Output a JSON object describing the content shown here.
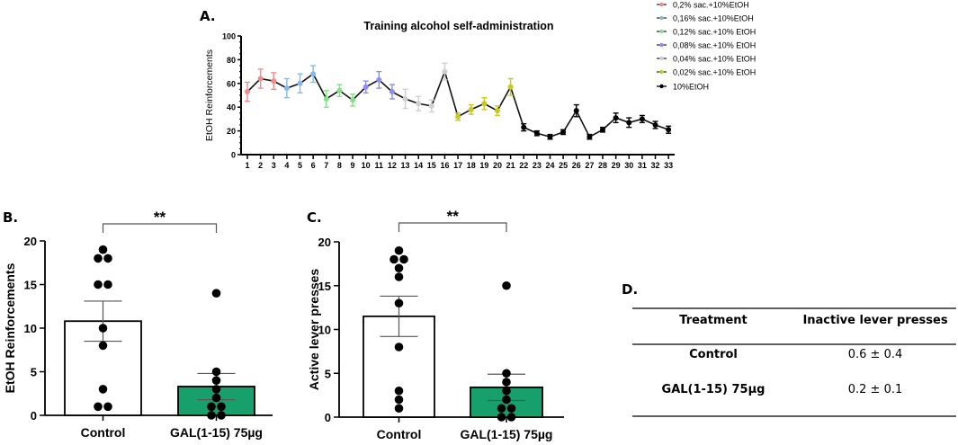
{
  "chart_data": [
    {
      "panel": "A.",
      "type": "line",
      "title": "Training alcohol self-administration",
      "xlabel": "",
      "ylabel": "EtOH Reinforcements",
      "ylim": [
        0,
        100
      ],
      "yticks": [
        0,
        20,
        40,
        60,
        80,
        100
      ],
      "x": [
        1,
        2,
        3,
        4,
        5,
        6,
        7,
        8,
        9,
        10,
        11,
        12,
        13,
        14,
        15,
        16,
        17,
        18,
        19,
        20,
        21,
        22,
        23,
        24,
        25,
        26,
        27,
        28,
        29,
        30,
        31,
        32,
        33
      ],
      "y": [
        53,
        64,
        62,
        56,
        60,
        68,
        47,
        54,
        46,
        57,
        63,
        53,
        47,
        43,
        41,
        70,
        32,
        38,
        43,
        37,
        57,
        23,
        18,
        15,
        19,
        37,
        15,
        21,
        31,
        27,
        30,
        25,
        21
      ],
      "err": [
        8,
        8,
        7,
        8,
        8,
        7,
        7,
        5,
        5,
        5,
        7,
        6,
        8,
        6,
        5,
        7,
        3,
        4,
        5,
        4,
        7,
        3,
        2,
        2,
        2,
        5,
        2,
        2,
        4,
        4,
        3,
        3,
        3
      ],
      "series": [
        {
          "name": "0,2% sac.+10%EtOH",
          "sessions": [
            1,
            2,
            3
          ],
          "color": "#f28a8a"
        },
        {
          "name": "0,16% sac.+10%EtOH",
          "sessions": [
            4,
            5,
            6
          ],
          "color": "#86b8ea"
        },
        {
          "name": "0,12% sac.+10% EtOH",
          "sessions": [
            7,
            8,
            9
          ],
          "color": "#84e084"
        },
        {
          "name": "0,08% sac.+10% EtOH",
          "sessions": [
            10,
            11,
            12
          ],
          "color": "#8c8cf2"
        },
        {
          "name": "0,04% sac.+10% EtOH",
          "sessions": [
            13,
            14,
            15,
            16
          ],
          "color": "#cfcfcf"
        },
        {
          "name": "0,02% sac.+10% EtOH",
          "sessions": [
            17,
            18,
            19,
            20,
            21
          ],
          "color": "#c9c91c"
        },
        {
          "name": "10%EtOH",
          "sessions": [
            22,
            23,
            24,
            25,
            26,
            27,
            28,
            29,
            30,
            31,
            32,
            33
          ],
          "color": "#000000"
        }
      ],
      "legend_position": "top-right"
    },
    {
      "panel": "B.",
      "type": "bar",
      "ylabel": "EtOH Reinforcements",
      "ylim": [
        0,
        20
      ],
      "yticks": [
        0,
        5,
        10,
        15,
        20
      ],
      "categories": [
        "Control",
        "GAL(1-15) 75µg"
      ],
      "values": [
        10.8,
        3.3
      ],
      "sem": [
        2.3,
        1.5
      ],
      "points": [
        [
          19,
          18,
          18,
          15,
          15,
          10,
          8,
          3,
          1,
          1
        ],
        [
          14,
          5,
          4,
          3,
          2,
          1,
          1,
          0,
          0
        ]
      ],
      "colors": [
        "#ffffff",
        "#17a06b"
      ],
      "significance": "**"
    },
    {
      "panel": "C.",
      "type": "bar",
      "ylabel": "Active lever presses",
      "ylim": [
        0,
        20
      ],
      "yticks": [
        0,
        5,
        10,
        15,
        20
      ],
      "categories": [
        "Control",
        "GAL(1-15) 75µg"
      ],
      "values": [
        11.5,
        3.4
      ],
      "sem": [
        2.3,
        1.5
      ],
      "points": [
        [
          19,
          18,
          18,
          17,
          16,
          13,
          8,
          3,
          2,
          1
        ],
        [
          15,
          5,
          4,
          3,
          2,
          1,
          1,
          0,
          0
        ]
      ],
      "colors": [
        "#ffffff",
        "#17a06b"
      ],
      "significance": "**"
    },
    {
      "panel": "D.",
      "type": "table",
      "columns": [
        "Treatment",
        "Inactive lever presses"
      ],
      "rows": [
        [
          "Control",
          "0.6 ± 0.4"
        ],
        [
          "GAL(1-15) 75µg",
          "0.2 ± 0.1"
        ]
      ]
    }
  ]
}
